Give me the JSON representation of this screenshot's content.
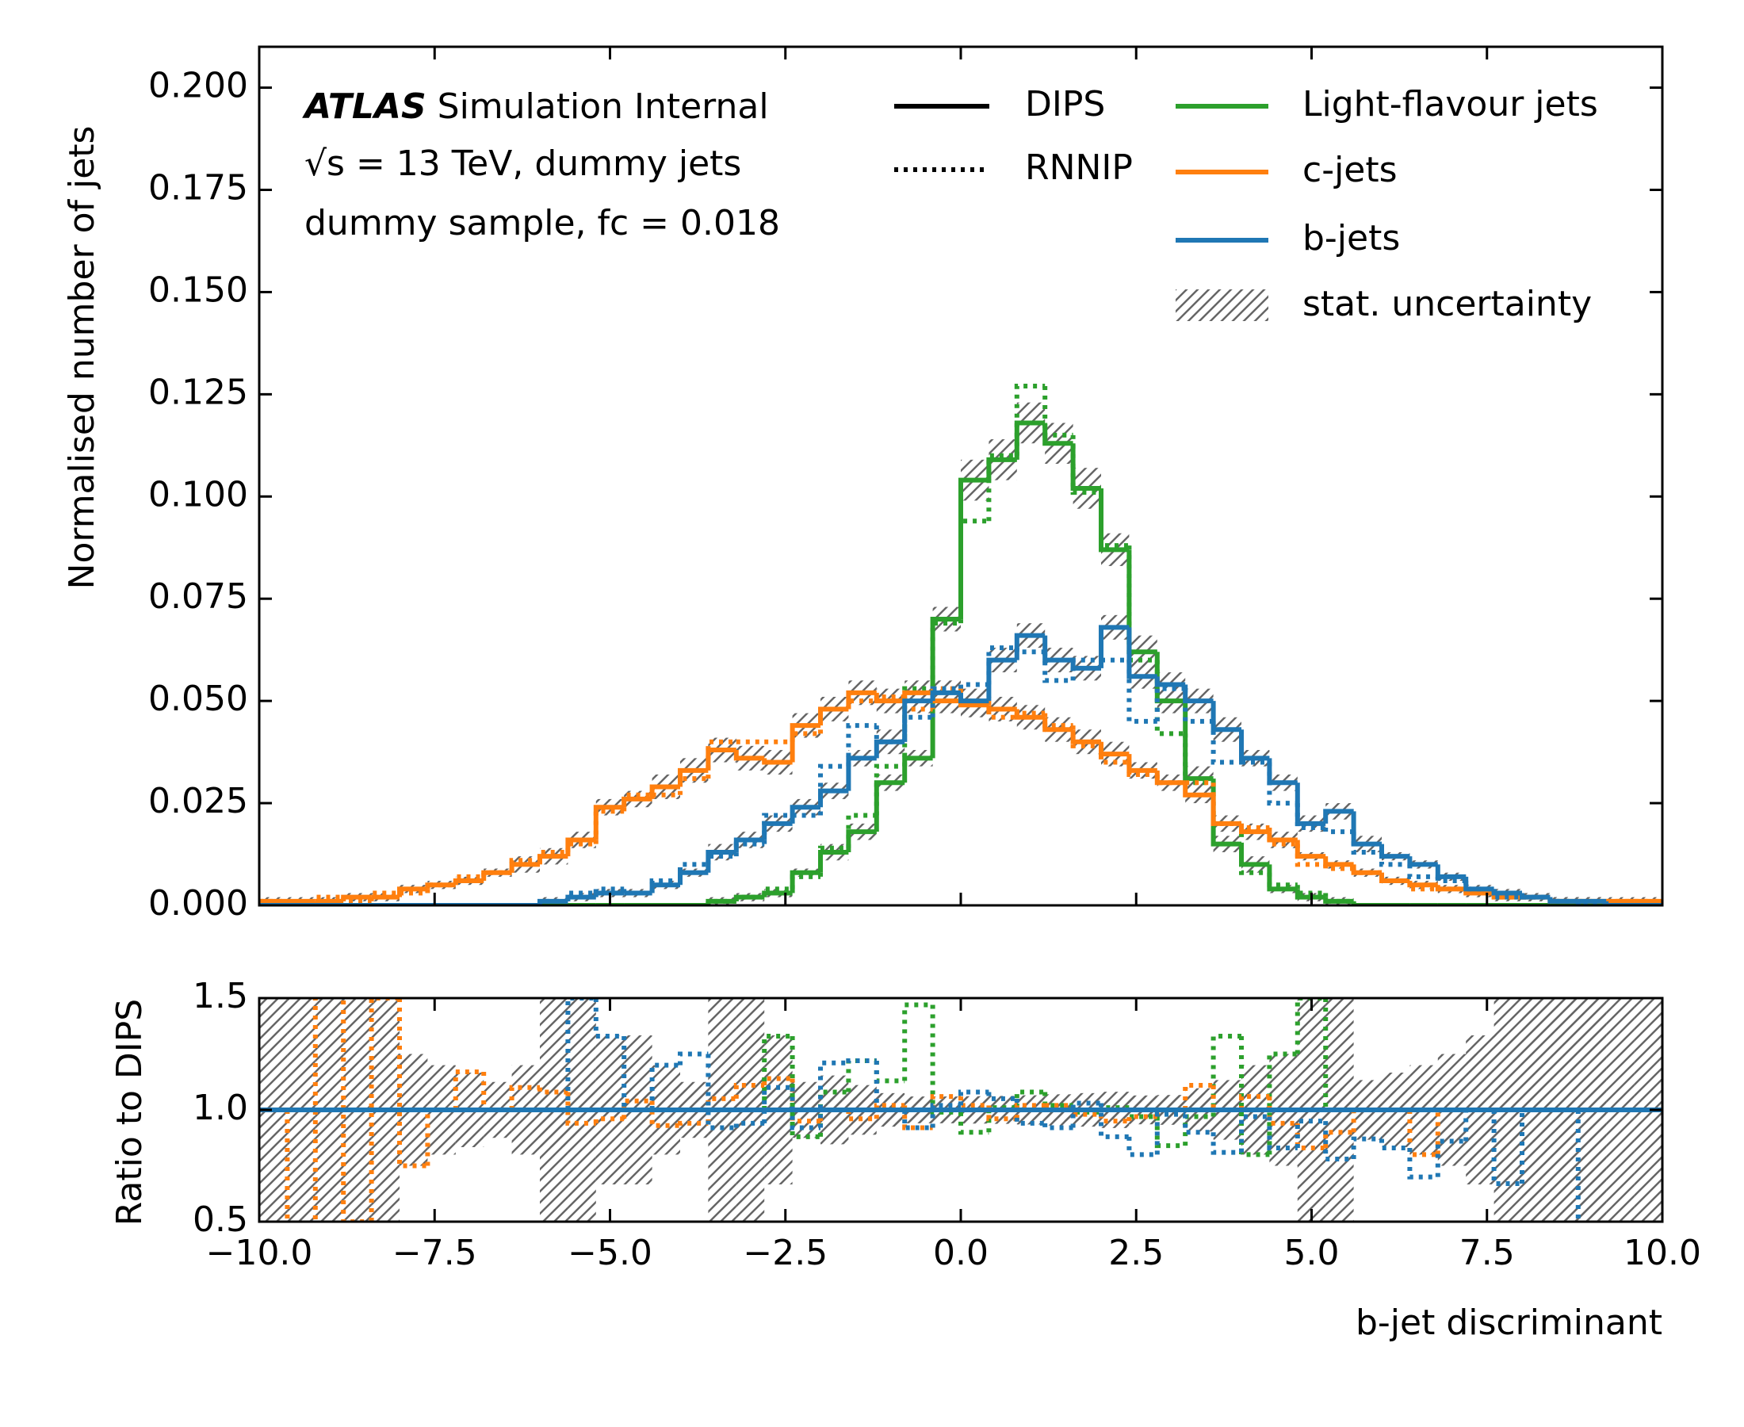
{
  "chart_data": {
    "type": "histogram",
    "atlas_label": "ATLAS",
    "atlas_sublabel": "Simulation Internal",
    "info_lines": [
      "√s = 13 TeV, dummy jets",
      "dummy sample, fc = 0.018"
    ],
    "xlabel": "b-jet discriminant",
    "ylabel": "Normalised number of jets",
    "ratio_ylabel": "Ratio to DIPS",
    "uncertainty_label": "stat. uncertainty",
    "taggers": [
      {
        "name": "DIPS",
        "linestyle": "solid"
      },
      {
        "name": "RNNIP",
        "linestyle": "dotted"
      }
    ],
    "bins": [
      -10,
      -9.6,
      -9.2,
      -8.8,
      -8.4,
      -8,
      -7.6,
      -7.2,
      -6.8,
      -6.4,
      -6,
      -5.6,
      -5.2,
      -4.8,
      -4.4,
      -4,
      -3.6,
      -3.2,
      -2.8,
      -2.4,
      -2,
      -1.6,
      -1.2,
      -0.8,
      -0.4,
      0,
      0.4,
      0.8,
      1.2,
      1.6,
      2,
      2.4,
      2.8,
      3.2,
      3.6,
      4,
      4.4,
      4.8,
      5.2,
      5.6,
      6,
      6.4,
      6.8,
      7.2,
      7.6,
      8,
      8.4,
      8.8,
      9.2,
      9.6,
      10
    ],
    "xlim": [
      -10,
      10
    ],
    "xticks": [
      {
        "value": -10,
        "label": "−10.0"
      },
      {
        "value": -7.5,
        "label": "−7.5"
      },
      {
        "value": -5,
        "label": "−5.0"
      },
      {
        "value": -2.5,
        "label": "−2.5"
      },
      {
        "value": 0,
        "label": "0.0"
      },
      {
        "value": 2.5,
        "label": "2.5"
      },
      {
        "value": 5,
        "label": "5.0"
      },
      {
        "value": 7.5,
        "label": "7.5"
      },
      {
        "value": 10,
        "label": "10.0"
      }
    ],
    "ylim": [
      0,
      0.21
    ],
    "yticks": [
      {
        "value": 0,
        "label": "0.000"
      },
      {
        "value": 0.025,
        "label": "0.025"
      },
      {
        "value": 0.05,
        "label": "0.050"
      },
      {
        "value": 0.075,
        "label": "0.075"
      },
      {
        "value": 0.1,
        "label": "0.100"
      },
      {
        "value": 0.125,
        "label": "0.125"
      },
      {
        "value": 0.15,
        "label": "0.150"
      },
      {
        "value": 0.175,
        "label": "0.175"
      },
      {
        "value": 0.2,
        "label": "0.200"
      }
    ],
    "ratio_ylim": [
      0.5,
      1.5
    ],
    "ratio_yticks": [
      0.5,
      {
        "value": 1,
        "label": "1.0"
      },
      1.5
    ],
    "ratio_reference": 1,
    "ratio_reference_color": "#1f77b4",
    "series": [
      {
        "name": "Light-flavour jets",
        "color": "#2ca02c",
        "dips": {
          "values": [
            0,
            0,
            0,
            0,
            0,
            0,
            0,
            0,
            0,
            0,
            0,
            0,
            0,
            0,
            0,
            0,
            0.001,
            0.002,
            0.003,
            0.008,
            0.013,
            0.018,
            0.03,
            0.036,
            0.07,
            0.104,
            0.109,
            0.118,
            0.113,
            0.102,
            0.087,
            0.062,
            0.05,
            0.031,
            0.015,
            0.01,
            0.004,
            0.002,
            0.001,
            0,
            0,
            0,
            0,
            0,
            0,
            0,
            0,
            0,
            0,
            0
          ],
          "errors": [
            0,
            0,
            0,
            0,
            0,
            0,
            0,
            0,
            0,
            0,
            0,
            0,
            0,
            0,
            0,
            0,
            0.001,
            0.001,
            0.001,
            0.001,
            0.002,
            0.002,
            0.002,
            0.002,
            0.003,
            0.005,
            0.005,
            0.005,
            0.005,
            0.005,
            0.004,
            0.004,
            0.003,
            0.003,
            0.002,
            0.002,
            0.001,
            0.001,
            0.001,
            0,
            0,
            0,
            0,
            0,
            0,
            0,
            0,
            0,
            0,
            0
          ]
        },
        "rnnip": {
          "values": [
            0,
            0,
            0,
            0,
            0,
            0,
            0,
            0,
            0,
            0,
            0,
            0,
            0,
            0,
            0,
            0,
            0.001,
            0.002,
            0.004,
            0.007,
            0.014,
            0.022,
            0.034,
            0.053,
            0.069,
            0.094,
            0.11,
            0.127,
            0.115,
            0.101,
            0.088,
            0.06,
            0.042,
            0.03,
            0.02,
            0.008,
            0.005,
            0.003,
            0.001,
            0,
            0,
            0,
            0,
            0,
            0,
            0,
            0,
            0,
            0,
            0
          ],
          "ratio": [
            null,
            null,
            null,
            null,
            null,
            null,
            null,
            null,
            null,
            null,
            null,
            null,
            null,
            null,
            null,
            null,
            1,
            1,
            1.33,
            0.88,
            1.08,
            1.22,
            1.13,
            1.47,
            0.99,
            0.9,
            1.01,
            1.08,
            1.02,
            0.99,
            1.01,
            0.97,
            0.84,
            0.97,
            1.33,
            0.8,
            1.25,
            1.5,
            1,
            null,
            null,
            null,
            null,
            null,
            null,
            null,
            null,
            null,
            null,
            null
          ]
        }
      },
      {
        "name": "c-jets",
        "color": "#ff7f0e",
        "dips": {
          "values": [
            0.001,
            0.001,
            0.001,
            0.002,
            0.002,
            0.004,
            0.005,
            0.006,
            0.008,
            0.01,
            0.012,
            0.016,
            0.024,
            0.026,
            0.029,
            0.033,
            0.038,
            0.036,
            0.035,
            0.044,
            0.048,
            0.052,
            0.05,
            0.052,
            0.05,
            0.049,
            0.048,
            0.046,
            0.043,
            0.04,
            0.037,
            0.033,
            0.03,
            0.027,
            0.02,
            0.018,
            0.016,
            0.012,
            0.01,
            0.008,
            0.006,
            0.005,
            0.004,
            0.003,
            0.002,
            0.002,
            0.001,
            0.001,
            0.001,
            0.001
          ],
          "errors": [
            0.001,
            0.001,
            0.001,
            0.001,
            0.001,
            0.001,
            0.001,
            0.001,
            0.001,
            0.002,
            0.002,
            0.002,
            0.002,
            0.002,
            0.003,
            0.003,
            0.003,
            0.003,
            0.003,
            0.003,
            0.003,
            0.003,
            0.003,
            0.003,
            0.003,
            0.003,
            0.003,
            0.003,
            0.003,
            0.003,
            0.003,
            0.002,
            0.002,
            0.002,
            0.002,
            0.002,
            0.002,
            0.001,
            0.001,
            0.001,
            0.001,
            0.001,
            0.001,
            0.001,
            0.001,
            0.001,
            0.001,
            0.001,
            0.001,
            0.001
          ]
        },
        "rnnip": {
          "values": [
            0.001,
            0,
            0.002,
            0.001,
            0.003,
            0.003,
            0.005,
            0.007,
            0.008,
            0.011,
            0.013,
            0.015,
            0.023,
            0.027,
            0.027,
            0.031,
            0.04,
            0.04,
            0.04,
            0.042,
            0.048,
            0.05,
            0.051,
            0.048,
            0.053,
            0.05,
            0.046,
            0.047,
            0.044,
            0.039,
            0.035,
            0.032,
            0.03,
            0.03,
            0.02,
            0.019,
            0.015,
            0.01,
            0.009,
            0.008,
            0.006,
            0.004,
            0.004,
            0.003,
            0.002,
            0.002,
            0.001,
            0.001,
            0.001,
            0.001
          ],
          "ratio": [
            1,
            0,
            2,
            0.5,
            1.5,
            0.75,
            1,
            1.17,
            1,
            1.1,
            1.08,
            0.94,
            0.96,
            1.04,
            0.93,
            0.94,
            1.05,
            1.11,
            1.14,
            0.95,
            1,
            0.96,
            1.02,
            0.92,
            1.06,
            1.02,
            0.96,
            1.02,
            1.02,
            0.98,
            0.95,
            0.97,
            1,
            1.11,
            1,
            1.06,
            0.94,
            0.83,
            0.9,
            1,
            1,
            0.8,
            1,
            1,
            1,
            1,
            1,
            1,
            1,
            1
          ]
        }
      },
      {
        "name": "b-jets",
        "color": "#1f77b4",
        "dips": {
          "values": [
            0,
            0,
            0,
            0,
            0,
            0,
            0,
            0,
            0,
            0,
            0.001,
            0.002,
            0.003,
            0.003,
            0.005,
            0.008,
            0.013,
            0.016,
            0.02,
            0.024,
            0.028,
            0.036,
            0.04,
            0.05,
            0.052,
            0.05,
            0.06,
            0.066,
            0.06,
            0.058,
            0.068,
            0.056,
            0.054,
            0.05,
            0.043,
            0.036,
            0.03,
            0.02,
            0.023,
            0.015,
            0.012,
            0.01,
            0.007,
            0.004,
            0.003,
            0.002,
            0.001,
            0.001,
            0,
            0
          ],
          "errors": [
            0,
            0,
            0,
            0,
            0,
            0,
            0,
            0,
            0,
            0,
            0.001,
            0.001,
            0.001,
            0.001,
            0.001,
            0.001,
            0.002,
            0.002,
            0.002,
            0.002,
            0.002,
            0.002,
            0.003,
            0.003,
            0.003,
            0.003,
            0.003,
            0.003,
            0.003,
            0.003,
            0.003,
            0.003,
            0.003,
            0.003,
            0.003,
            0.002,
            0.002,
            0.002,
            0.002,
            0.002,
            0.001,
            0.001,
            0.001,
            0.001,
            0.001,
            0.001,
            0.001,
            0.001,
            0,
            0
          ]
        },
        "rnnip": {
          "values": [
            0,
            0,
            0,
            0,
            0,
            0,
            0,
            0,
            0,
            0,
            0.001,
            0.003,
            0.004,
            0.003,
            0.006,
            0.01,
            0.012,
            0.015,
            0.022,
            0.022,
            0.034,
            0.044,
            0.04,
            0.046,
            0.053,
            0.054,
            0.063,
            0.062,
            0.055,
            0.06,
            0.06,
            0.045,
            0.053,
            0.045,
            0.035,
            0.035,
            0.025,
            0.019,
            0.018,
            0.013,
            0.01,
            0.007,
            0.006,
            0.004,
            0.002,
            0.002,
            0.001,
            0,
            0,
            0
          ],
          "ratio": [
            null,
            null,
            null,
            null,
            null,
            null,
            null,
            null,
            null,
            null,
            1,
            1.5,
            1.33,
            1,
            1.2,
            1.25,
            0.92,
            0.94,
            1.1,
            0.92,
            1.21,
            1.22,
            1,
            0.92,
            1.02,
            1.08,
            1.05,
            0.94,
            0.92,
            1.03,
            0.88,
            0.8,
            0.98,
            0.9,
            0.81,
            0.97,
            0.83,
            0.95,
            0.78,
            0.87,
            0.83,
            0.7,
            0.86,
            1,
            0.67,
            1,
            1,
            0,
            null,
            null
          ]
        }
      }
    ]
  }
}
